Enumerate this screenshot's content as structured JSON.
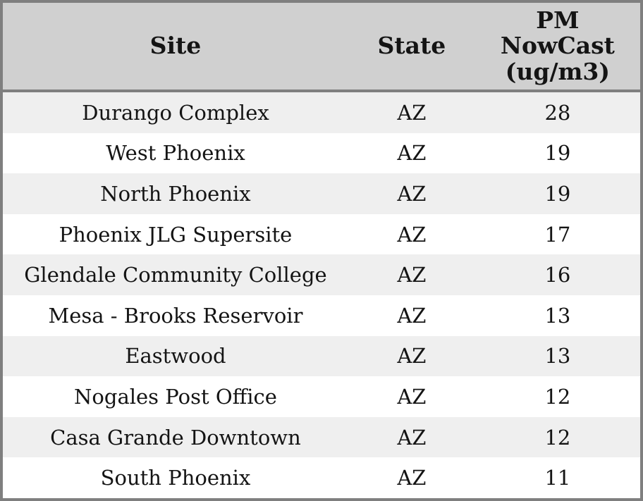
{
  "chart_data": {
    "type": "table",
    "columns": [
      "Site",
      "State",
      "PM\nNowCast\n(ug/m3)"
    ],
    "rows": [
      {
        "site": "Durango Complex",
        "state": "AZ",
        "pm_nowcast": "28"
      },
      {
        "site": "West Phoenix",
        "state": "AZ",
        "pm_nowcast": "19"
      },
      {
        "site": "North Phoenix",
        "state": "AZ",
        "pm_nowcast": "19"
      },
      {
        "site": "Phoenix JLG Supersite",
        "state": "AZ",
        "pm_nowcast": "17"
      },
      {
        "site": "Glendale Community College",
        "state": "AZ",
        "pm_nowcast": "16"
      },
      {
        "site": "Mesa - Brooks Reservoir",
        "state": "AZ",
        "pm_nowcast": "13"
      },
      {
        "site": "Eastwood",
        "state": "AZ",
        "pm_nowcast": "13"
      },
      {
        "site": "Nogales Post Office",
        "state": "AZ",
        "pm_nowcast": "12"
      },
      {
        "site": "Casa Grande Downtown",
        "state": "AZ",
        "pm_nowcast": "12"
      },
      {
        "site": "South Phoenix",
        "state": "AZ",
        "pm_nowcast": "11"
      }
    ],
    "values_numeric": [
      28,
      19,
      19,
      17,
      16,
      13,
      13,
      12,
      12,
      11
    ],
    "title": "",
    "legend": null,
    "grid": false
  },
  "colors": {
    "header_bg": "#d0d0d0",
    "row_alt": "#efefef",
    "row_bg": "#ffffff",
    "border": "#7f7f7f",
    "text": "#141414"
  }
}
